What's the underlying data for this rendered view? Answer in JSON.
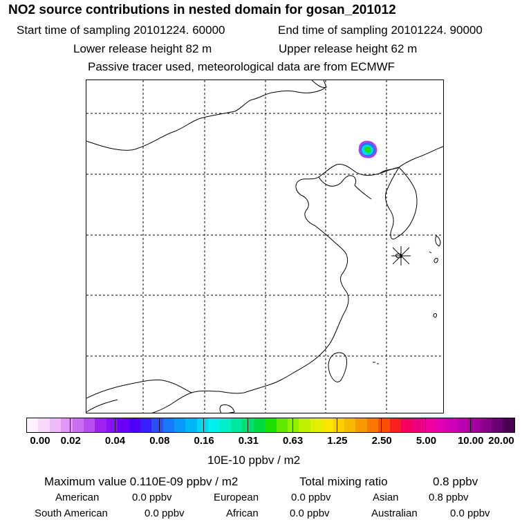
{
  "header": {
    "title": "NO2 source contributions in nested domain for gosan_201012",
    "start_time": "Start time of sampling 20101224. 60000",
    "end_time": "End time of sampling 20101224. 90000",
    "lower_release": "Lower release height   82 m",
    "upper_release": "Upper release height   62 m",
    "tracer_note": "Passive tracer used, meteorological data are from ECMWF"
  },
  "colorbar": {
    "colors": [
      "#fff0ff",
      "#f8d8fc",
      "#eebaf8",
      "#e297f8",
      "#ca6cf4",
      "#b84cee",
      "#a020f0",
      "#8a10f4",
      "#6a00f8",
      "#5000f8",
      "#3a20fa",
      "#2a50fa",
      "#1a78fa",
      "#0a98f8",
      "#00b8f8",
      "#00d8f0",
      "#00f0f0",
      "#00f0c8",
      "#00e8a0",
      "#00e070",
      "#00d840",
      "#20e000",
      "#60e800",
      "#90f000",
      "#c0f000",
      "#e0f000",
      "#f8e800",
      "#f8d000",
      "#f8b800",
      "#f89800",
      "#f87800",
      "#f85000",
      "#f82020",
      "#f80060",
      "#f00080",
      "#f000a0",
      "#e000b0",
      "#d000b8",
      "#b800b0",
      "#a000a0",
      "#880088",
      "#6a0070",
      "#4a0050"
    ],
    "tick_labels": [
      "0.00",
      "0.02",
      "0.04",
      "0.08",
      "0.16",
      "0.31",
      "0.63",
      "1.25",
      "2.50",
      "5.00",
      "10.00",
      "20.00"
    ],
    "units": "10E-10 ppbv / m2"
  },
  "stats": {
    "max_label": "Maximum value  0.110E-09 ppbv / m2",
    "total_label": "Total mixing ratio",
    "total_value": "0.8 ppbv",
    "regions": [
      {
        "name": "American",
        "value": "0.0 ppbv"
      },
      {
        "name": "European",
        "value": "0.0 ppbv"
      },
      {
        "name": "Asian",
        "value": "0.8 ppbv"
      },
      {
        "name": "South American",
        "value": "0.0 ppbv"
      },
      {
        "name": "African",
        "value": "0.0 ppbv"
      },
      {
        "name": "Australian",
        "value": "0.0 ppbv"
      }
    ]
  }
}
